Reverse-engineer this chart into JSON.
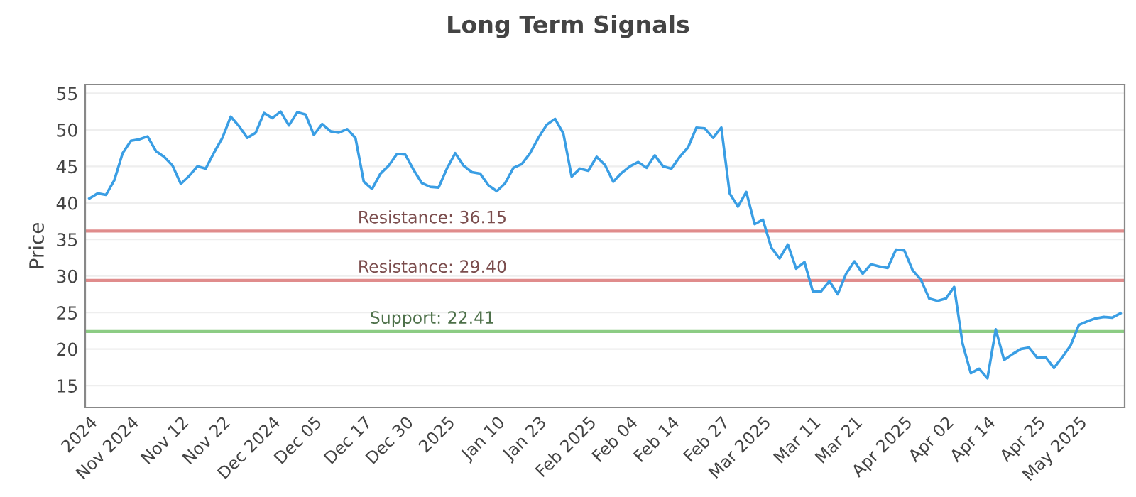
{
  "chart_data": {
    "type": "line",
    "title": "Long Term Signals",
    "ylabel": "Price",
    "categories": [
      "2024",
      null,
      null,
      null,
      null,
      "Nov 2024",
      null,
      null,
      null,
      null,
      null,
      "Nov 12",
      null,
      null,
      null,
      null,
      "Nov 22",
      null,
      null,
      null,
      null,
      null,
      "Dec 2024",
      null,
      null,
      null,
      null,
      "Dec 05",
      null,
      null,
      null,
      null,
      null,
      "Dec 17",
      null,
      null,
      null,
      null,
      "Dec 30",
      null,
      null,
      null,
      null,
      "2025",
      null,
      null,
      null,
      null,
      null,
      "Jan 10",
      null,
      null,
      null,
      null,
      "Jan 23",
      null,
      null,
      null,
      null,
      null,
      "Feb 2025",
      null,
      null,
      null,
      null,
      "Feb 04",
      null,
      null,
      null,
      null,
      "Feb 14",
      null,
      null,
      null,
      null,
      null,
      "Feb 27",
      null,
      null,
      null,
      null,
      "Mar 2025",
      null,
      null,
      null,
      null,
      null,
      "Mar 11",
      null,
      null,
      null,
      null,
      "Mar 21",
      null,
      null,
      null,
      null,
      null,
      "Apr 2025",
      null,
      null,
      null,
      null,
      "Apr 02",
      null,
      null,
      null,
      null,
      "Apr 14",
      null,
      null,
      null,
      null,
      null,
      "Apr 25",
      null,
      null,
      null,
      null,
      "May 2025",
      null,
      null,
      null,
      null,
      null
    ],
    "series": [
      {
        "color": "#3a9ee4",
        "values": [
          40.6,
          41.3,
          41.1,
          43.1,
          46.8,
          48.5,
          48.7,
          49.1,
          47.1,
          46.3,
          45.1,
          42.6,
          43.7,
          45,
          44.7,
          46.9,
          48.9,
          51.8,
          50.5,
          48.9,
          49.6,
          52.3,
          51.6,
          52.5,
          50.6,
          52.4,
          52.1,
          49.3,
          50.8,
          49.8,
          49.6,
          50.1,
          48.9,
          42.9,
          41.9,
          44,
          45.1,
          46.7,
          46.6,
          44.5,
          42.7,
          42.2,
          42.1,
          44.7,
          46.8,
          45.1,
          44.2,
          44,
          42.4,
          41.6,
          42.7,
          44.8,
          45.3,
          46.8,
          48.9,
          50.7,
          51.5,
          49.5,
          43.6,
          44.7,
          44.4,
          46.3,
          45.2,
          42.9,
          44.1,
          45,
          45.6,
          44.8,
          46.5,
          45,
          44.7,
          46.3,
          47.6,
          50.3,
          50.2,
          48.9,
          50.3,
          41.3,
          39.5,
          41.5,
          37.1,
          37.7,
          33.9,
          32.4,
          34.3,
          31,
          31.9,
          27.9,
          27.9,
          29.3,
          27.5,
          30.3,
          32,
          30.3,
          31.6,
          31.3,
          31.1,
          33.6,
          33.5,
          30.8,
          29.5,
          26.9,
          26.6,
          26.9,
          28.5,
          20.8,
          16.7,
          17.3,
          16,
          22.7,
          18.5,
          19.3,
          20,
          20.2,
          18.8,
          18.9,
          17.4,
          18.9,
          20.5,
          23.3,
          23.8,
          24.2,
          24.4,
          24.3,
          24.9
        ]
      }
    ],
    "ylim": [
      12,
      56.2
    ],
    "yticks": [
      15,
      20,
      25,
      30,
      35,
      40,
      45,
      50,
      55
    ],
    "grid": "y",
    "legend": false,
    "marker": "none",
    "line_style": "solid",
    "ref_lines": [
      {
        "axis": "y",
        "value": 36.15,
        "label": "Resistance: 36.15",
        "color": "#e08c8c"
      },
      {
        "axis": "y",
        "value": 29.4,
        "label": "Resistance: 29.40",
        "color": "#e08c8c"
      },
      {
        "axis": "y",
        "value": 22.41,
        "label": "Support: 22.41",
        "color": "#8ccc84"
      }
    ]
  }
}
